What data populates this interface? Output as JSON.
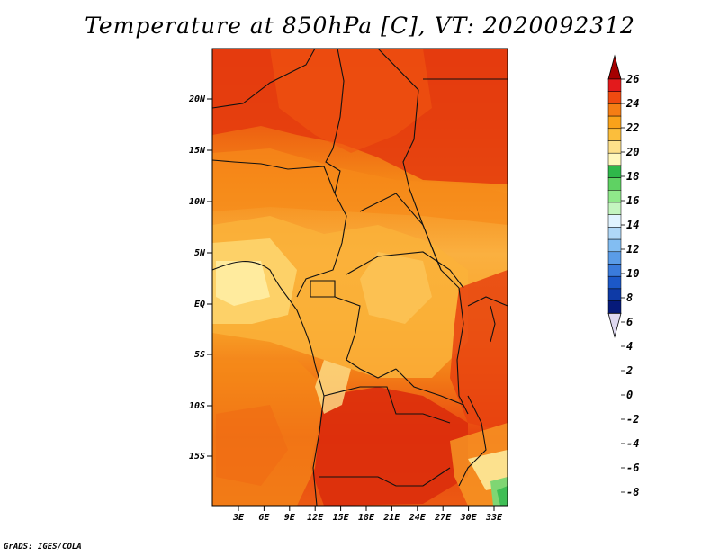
{
  "title": "Temperature at 850hPa [C], VT: 2020092312",
  "credit": "GrADS: IGES/COLA",
  "map": {
    "lat_labels": [
      "20N",
      "15N",
      "10N",
      "5N",
      "EQ",
      "5S",
      "10S",
      "15S"
    ],
    "lon_labels": [
      "3E",
      "6E",
      "9E",
      "12E",
      "15E",
      "18E",
      "21E",
      "24E",
      "27E",
      "30E",
      "33E"
    ]
  },
  "colorbar": {
    "labels": [
      "26",
      "24",
      "22",
      "20",
      "18",
      "16",
      "14",
      "12",
      "10",
      "8",
      "6",
      "4",
      "2",
      "0",
      "-2",
      "-4",
      "-6",
      "-8"
    ],
    "colors": [
      "#a50000",
      "#e31a1c",
      "#f04a10",
      "#f57d14",
      "#f9a21a",
      "#fbbe3c",
      "#fde08a",
      "#fff7bc",
      "#2fb84a",
      "#5fd263",
      "#8fe98a",
      "#c4f5c0",
      "#e0f3ff",
      "#b0d8f8",
      "#82bdf2",
      "#5a9ce8",
      "#3a7bdc",
      "#1c58c8",
      "#0e3aa6",
      "#061a7a",
      "#ded8f0"
    ]
  }
}
